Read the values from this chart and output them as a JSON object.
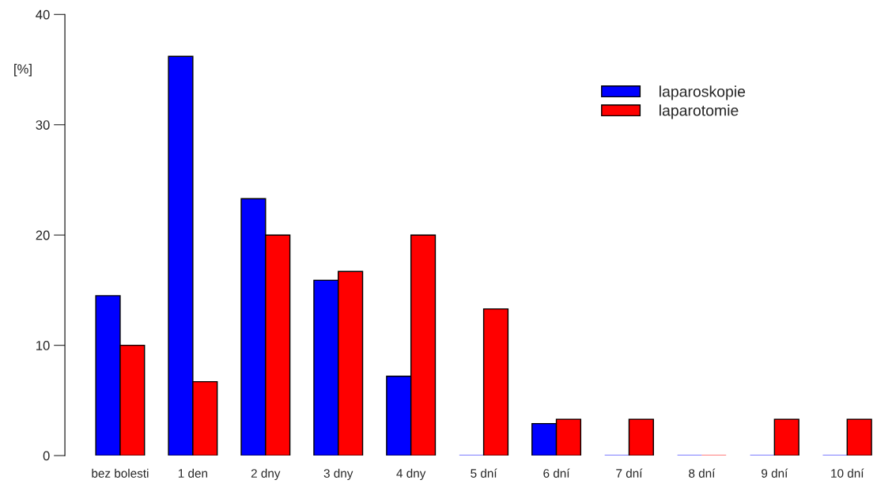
{
  "chart_data": {
    "type": "bar",
    "ylabel": "[%]",
    "categories": [
      "bez bolesti",
      "1 den",
      "2 dny",
      "3 dny",
      "4 dny",
      "5 dní",
      "6 dní",
      "7 dní",
      "8 dní",
      "9 dní",
      "10 dní"
    ],
    "series": [
      {
        "name": "laparoskopie",
        "color": "#0000ff",
        "values": [
          14.5,
          36.2,
          23.3,
          15.9,
          7.2,
          0,
          2.9,
          0,
          0,
          0,
          0
        ]
      },
      {
        "name": "laparotomie",
        "color": "#ff0000",
        "values": [
          10,
          6.7,
          20,
          16.7,
          20,
          13.3,
          3.3,
          3.3,
          0,
          3.3,
          3.3
        ]
      }
    ],
    "ylim": [
      0,
      40
    ],
    "yticks": [
      0,
      10,
      20,
      30,
      40
    ],
    "grid": false,
    "legend": "top right"
  }
}
